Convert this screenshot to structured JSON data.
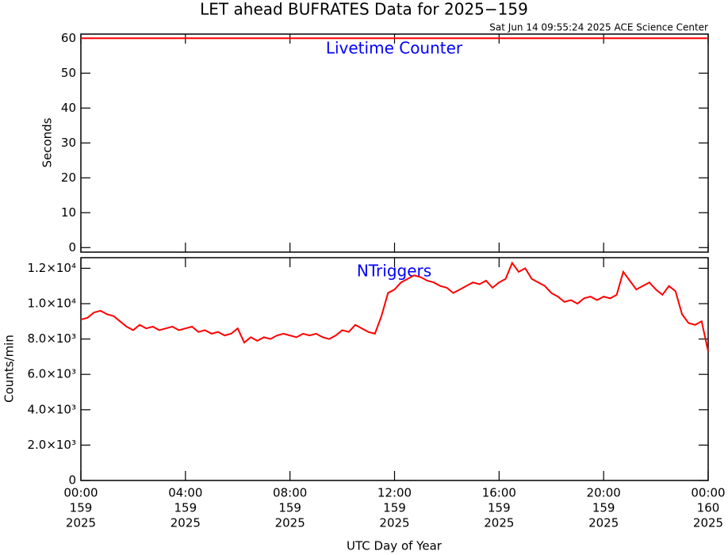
{
  "chart_data": [
    {
      "type": "line",
      "title": "LET ahead BUFRATES Data for 2025−159",
      "subtitle": "Sat Jun 14 09:55:24 2025 ACE Science Center",
      "ylabel": "Seconds",
      "annotation": "Livetime Counter",
      "xlim": [
        0,
        24
      ],
      "xticks": [
        0,
        4,
        8,
        12,
        16,
        20,
        24
      ],
      "ylim": [
        -1.3,
        61.2
      ],
      "yticks": [
        0,
        10,
        20,
        30,
        40,
        50,
        60
      ],
      "series": [
        {
          "color": "#ff0000",
          "x": [
            0,
            24
          ],
          "values": [
            60,
            60
          ]
        }
      ]
    },
    {
      "type": "line",
      "ylabel": "Counts/min",
      "annotation": "NTriggers",
      "xlabel": "UTC Day of Year",
      "xlim": [
        0,
        24
      ],
      "xticks": [
        {
          "value": 0,
          "label": [
            "00:00",
            "159",
            "2025"
          ]
        },
        {
          "value": 4,
          "label": [
            "04:00",
            "159",
            "2025"
          ]
        },
        {
          "value": 8,
          "label": [
            "08:00",
            "159",
            "2025"
          ]
        },
        {
          "value": 12,
          "label": [
            "12:00",
            "159",
            "2025"
          ]
        },
        {
          "value": 16,
          "label": [
            "16:00",
            "159",
            "2025"
          ]
        },
        {
          "value": 20,
          "label": [
            "20:00",
            "159",
            "2025"
          ]
        },
        {
          "value": 24,
          "label": [
            "00:00",
            "160",
            "2025"
          ]
        }
      ],
      "ylim": [
        0,
        12600
      ],
      "yticks": [
        0,
        {
          "value": 2000,
          "label": "2.0×10³"
        },
        {
          "value": 4000,
          "label": "4.0×10³"
        },
        {
          "value": 6000,
          "label": "6.0×10³"
        },
        {
          "value": 8000,
          "label": "8.0×10³"
        },
        {
          "value": 10000,
          "label": "1.0×10⁴"
        },
        {
          "value": 12000,
          "label": "1.2×10⁴"
        }
      ],
      "series": [
        {
          "color": "#ff0000",
          "x": [
            0,
            0.25,
            0.5,
            0.75,
            1,
            1.25,
            1.5,
            1.75,
            2,
            2.25,
            2.5,
            2.75,
            3,
            3.25,
            3.5,
            3.75,
            4,
            4.25,
            4.5,
            4.75,
            5,
            5.25,
            5.5,
            5.75,
            6,
            6.25,
            6.5,
            6.75,
            7,
            7.25,
            7.5,
            7.75,
            8,
            8.25,
            8.5,
            8.75,
            9,
            9.25,
            9.5,
            9.75,
            10,
            10.25,
            10.5,
            10.75,
            11,
            11.25,
            11.5,
            11.75,
            12,
            12.25,
            12.5,
            12.75,
            13,
            13.25,
            13.5,
            13.75,
            14,
            14.25,
            14.5,
            14.75,
            15,
            15.25,
            15.5,
            15.75,
            16,
            16.25,
            16.5,
            16.75,
            17,
            17.25,
            17.5,
            17.75,
            18,
            18.25,
            18.5,
            18.75,
            19,
            19.25,
            19.5,
            19.75,
            20,
            20.25,
            20.5,
            20.75,
            21,
            21.25,
            21.5,
            21.75,
            22,
            22.25,
            22.5,
            22.75,
            23,
            23.25,
            23.5,
            23.75,
            24
          ],
          "values": [
            9100,
            9200,
            9500,
            9600,
            9400,
            9300,
            9000,
            8700,
            8500,
            8800,
            8600,
            8700,
            8500,
            8600,
            8700,
            8500,
            8600,
            8700,
            8400,
            8500,
            8300,
            8400,
            8200,
            8300,
            8600,
            7800,
            8100,
            7900,
            8100,
            8000,
            8200,
            8300,
            8200,
            8100,
            8300,
            8200,
            8300,
            8100,
            8000,
            8200,
            8500,
            8400,
            8800,
            8600,
            8400,
            8300,
            9300,
            10600,
            10800,
            11200,
            11400,
            11600,
            11500,
            11300,
            11200,
            11000,
            10900,
            10600,
            10800,
            11000,
            11200,
            11100,
            11300,
            10900,
            11200,
            11400,
            12300,
            11800,
            12000,
            11400,
            11200,
            11000,
            10600,
            10400,
            10100,
            10200,
            10000,
            10300,
            10400,
            10200,
            10400,
            10300,
            10500,
            11800,
            11300,
            10800,
            11000,
            11200,
            10800,
            10500,
            11000,
            10700,
            9400,
            8900,
            8800,
            9000,
            7300
          ]
        }
      ]
    }
  ]
}
